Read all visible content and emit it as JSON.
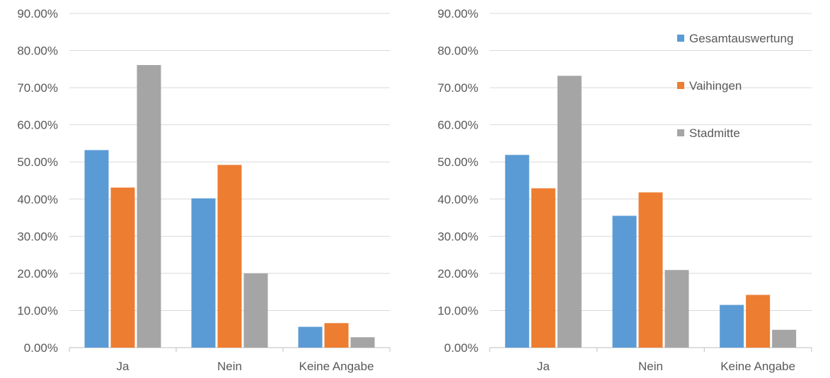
{
  "chart_data": [
    {
      "type": "bar",
      "categories": [
        "Ja",
        "Nein",
        "Keine Angabe"
      ],
      "ylim": [
        0,
        90
      ],
      "yticks": [
        "0.00%",
        "10.00%",
        "20.00%",
        "30.00%",
        "40.00%",
        "50.00%",
        "60.00%",
        "70.00%",
        "80.00%",
        "90.00%"
      ],
      "grid": true,
      "legend": "none",
      "series": [
        {
          "name": "Gesamtauswertung",
          "color": "#5B9BD5",
          "values": [
            53.2,
            40.2,
            5.6
          ]
        },
        {
          "name": "Vaihingen",
          "color": "#ED7D31",
          "values": [
            43.1,
            49.2,
            6.6
          ]
        },
        {
          "name": "Stadmitte",
          "color": "#A5A5A5",
          "values": [
            76.1,
            20.0,
            2.8
          ]
        }
      ]
    },
    {
      "type": "bar",
      "categories": [
        "Ja",
        "Nein",
        "Keine Angabe"
      ],
      "ylim": [
        0,
        90
      ],
      "yticks": [
        "0.00%",
        "10.00%",
        "20.00%",
        "30.00%",
        "40.00%",
        "50.00%",
        "60.00%",
        "70.00%",
        "80.00%",
        "90.00%"
      ],
      "grid": true,
      "legend": "right",
      "series": [
        {
          "name": "Gesamtauswertung",
          "color": "#5B9BD5",
          "values": [
            51.9,
            35.5,
            11.5
          ]
        },
        {
          "name": "Vaihingen",
          "color": "#ED7D31",
          "values": [
            42.9,
            41.8,
            14.2
          ]
        },
        {
          "name": "Stadmitte",
          "color": "#A5A5A5",
          "values": [
            73.2,
            20.9,
            4.8
          ]
        }
      ]
    }
  ]
}
